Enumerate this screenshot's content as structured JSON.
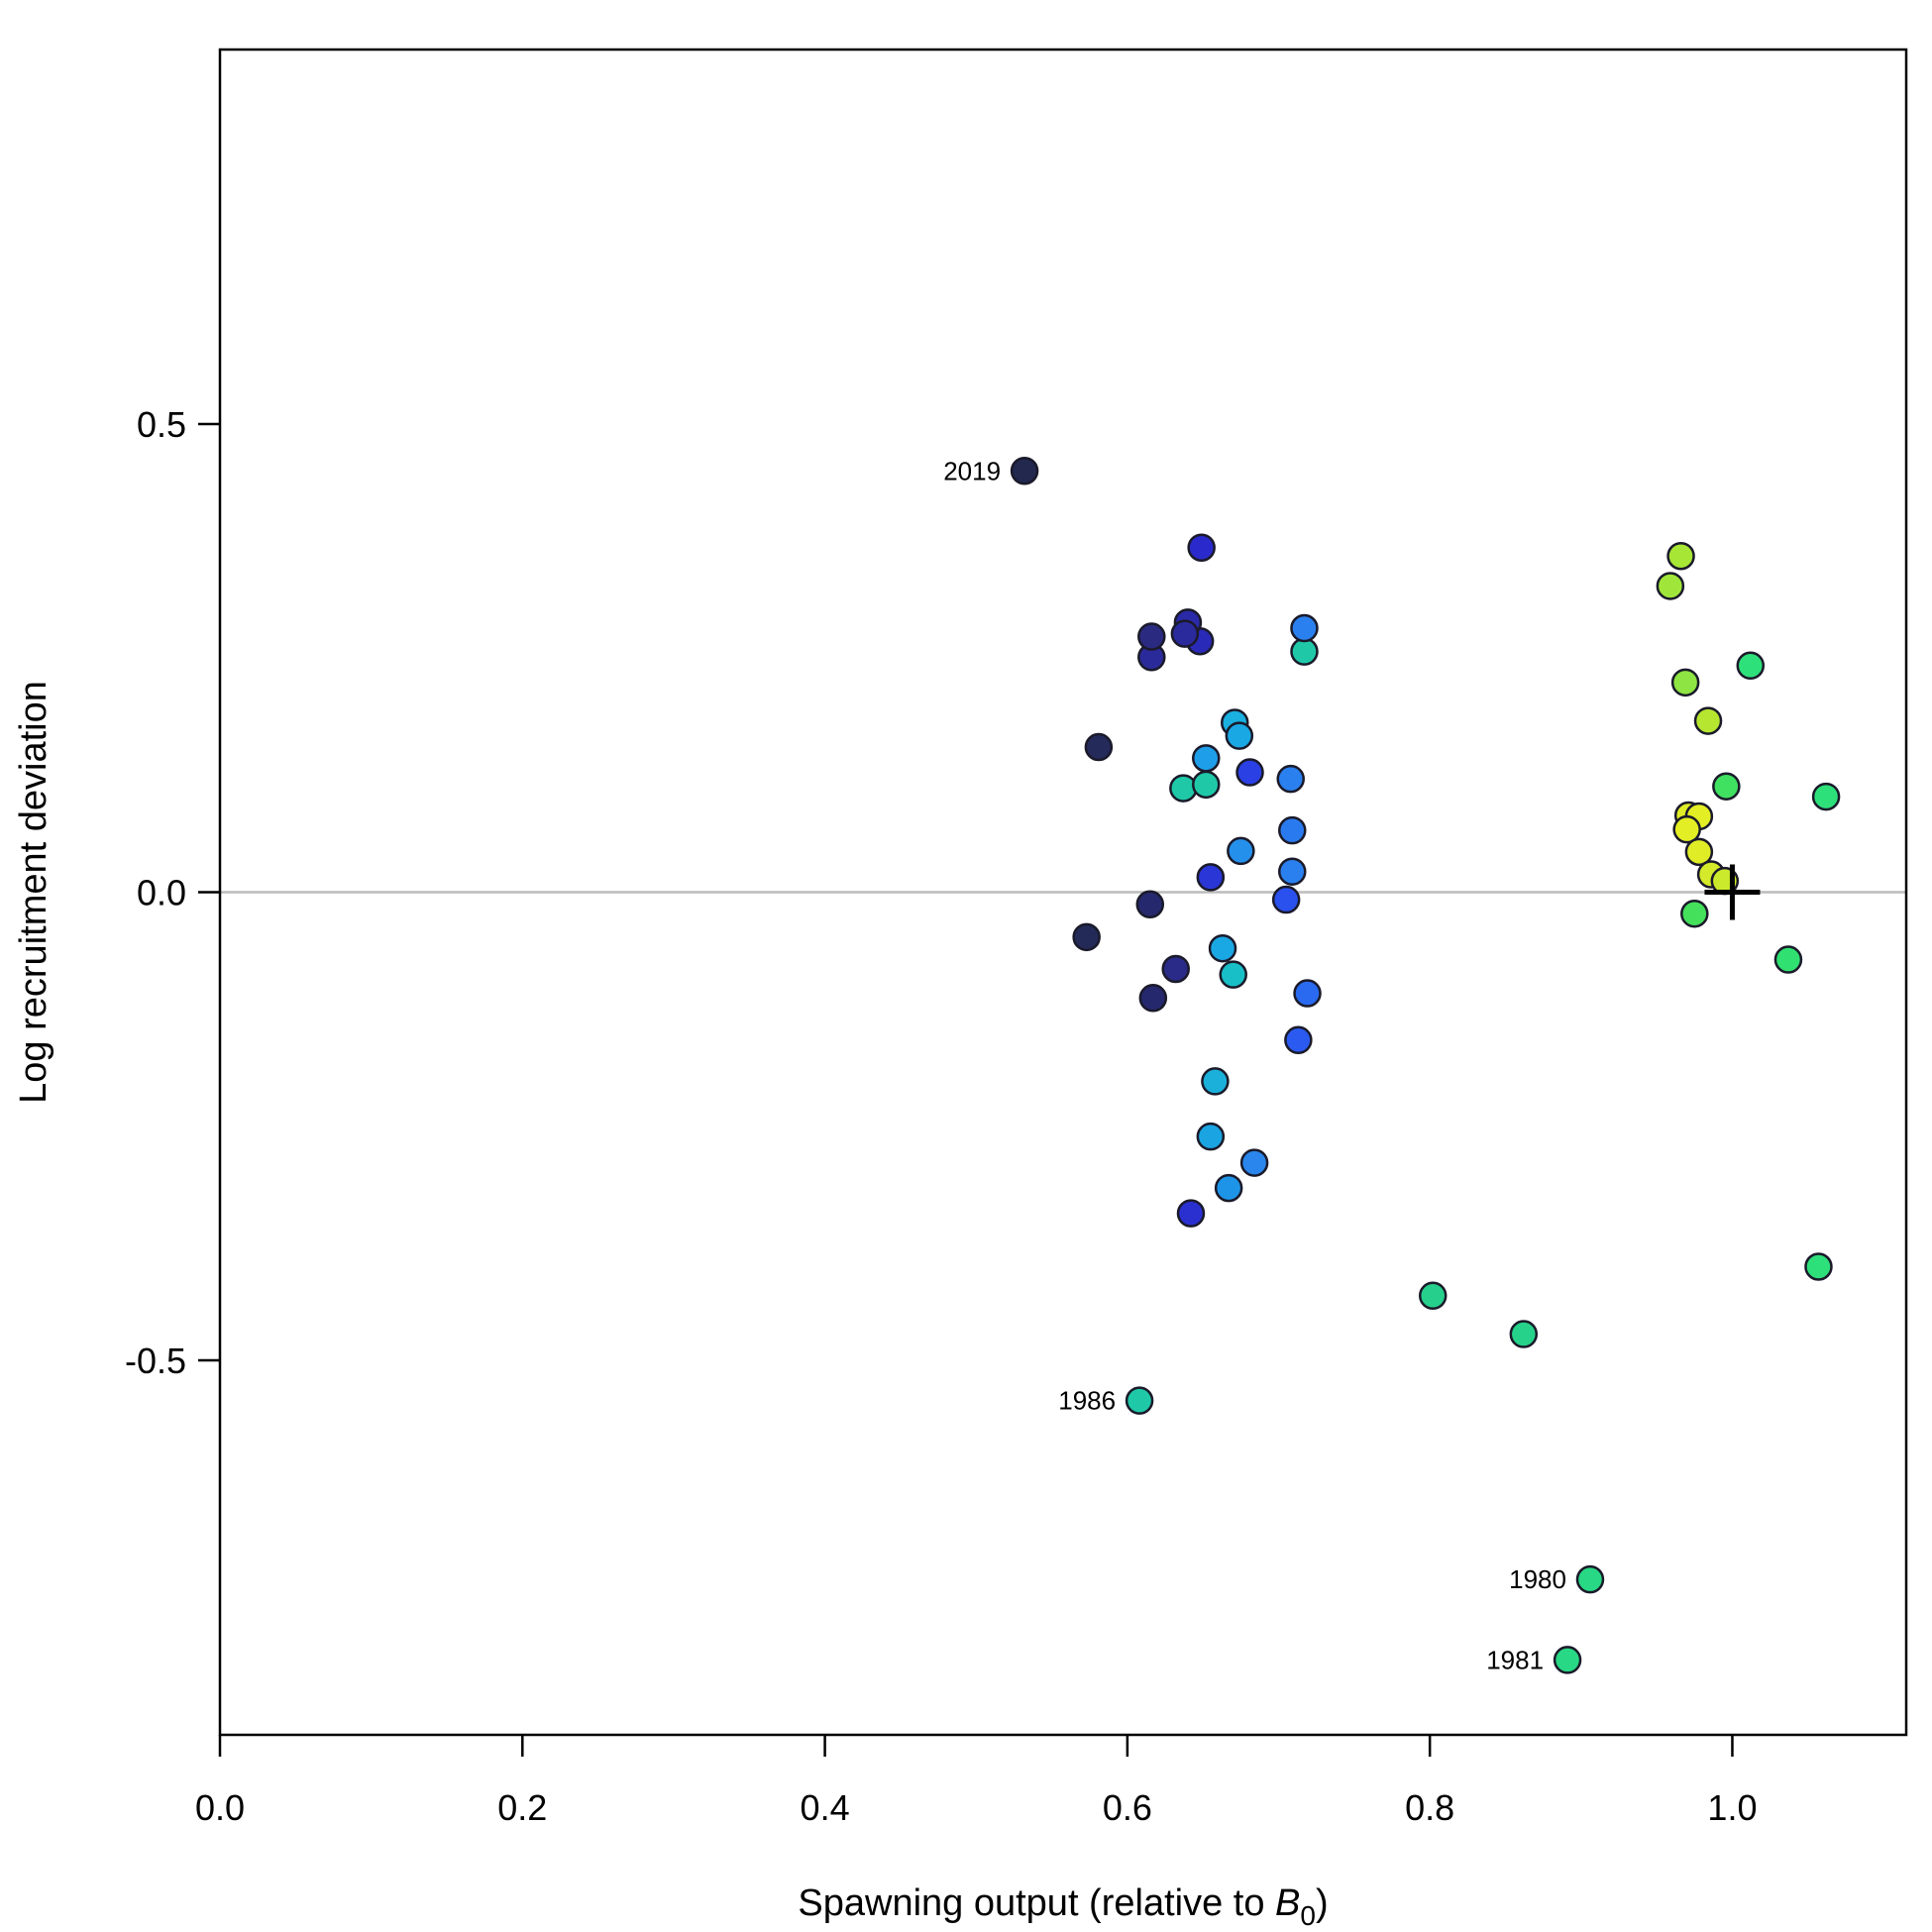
{
  "chart_data": {
    "type": "scatter",
    "title": "",
    "xlabel": {
      "main": "Spawning output (relative to ",
      "italic": "B",
      "sub": "0",
      "tail": ")"
    },
    "ylabel": "Log recruitment deviation",
    "xlim": [
      0.0,
      1.115
    ],
    "ylim": [
      -0.9,
      0.9
    ],
    "x_ticks": [
      {
        "value": 0.0,
        "label": "0.0"
      },
      {
        "value": 0.2,
        "label": "0.2"
      },
      {
        "value": 0.4,
        "label": "0.4"
      },
      {
        "value": 0.6,
        "label": "0.6"
      },
      {
        "value": 0.8,
        "label": "0.8"
      },
      {
        "value": 1.0,
        "label": "1.0"
      }
    ],
    "y_ticks": [
      {
        "value": 0.5,
        "label": "0.5"
      },
      {
        "value": 0.0,
        "label": "0.0"
      },
      {
        "value": -0.5,
        "label": "-0.5"
      }
    ],
    "reference_line_y": 0.0,
    "reference_line_color": "#bbbbbb",
    "marker": {
      "x": 1.0,
      "y": 0.0,
      "shape": "plus"
    },
    "grid": false,
    "points": [
      {
        "x": 1.062,
        "y": 0.102,
        "color": "#2ee07a"
      },
      {
        "x": 1.012,
        "y": 0.242,
        "color": "#2ee07a"
      },
      {
        "x": 0.996,
        "y": 0.113,
        "color": "#40e060"
      },
      {
        "x": 1.037,
        "y": -0.072,
        "color": "#30e070"
      },
      {
        "x": 1.057,
        "y": -0.4,
        "color": "#2ee07a"
      },
      {
        "x": 0.906,
        "y": -0.734,
        "color": "#28d884",
        "label": "1980"
      },
      {
        "x": 0.891,
        "y": -0.82,
        "color": "#28d884",
        "label": "1981"
      },
      {
        "x": 0.862,
        "y": -0.472,
        "color": "#26d28a"
      },
      {
        "x": 0.802,
        "y": -0.431,
        "color": "#26d08c"
      },
      {
        "x": 0.608,
        "y": -0.543,
        "color": "#1fc9a8",
        "label": "1986"
      },
      {
        "x": 0.717,
        "y": 0.257,
        "color": "#1fc9a8"
      },
      {
        "x": 0.637,
        "y": 0.111,
        "color": "#1fc9a8"
      },
      {
        "x": 0.652,
        "y": 0.115,
        "color": "#1fc9a8"
      },
      {
        "x": 0.67,
        "y": -0.088,
        "color": "#19bfc6"
      },
      {
        "x": 0.658,
        "y": -0.202,
        "color": "#1ab0da"
      },
      {
        "x": 0.655,
        "y": -0.261,
        "color": "#1aa4e2"
      },
      {
        "x": 0.667,
        "y": -0.316,
        "color": "#1e94e8"
      },
      {
        "x": 0.684,
        "y": -0.289,
        "color": "#2a86ec"
      },
      {
        "x": 0.663,
        "y": -0.06,
        "color": "#1aa8e4"
      },
      {
        "x": 0.671,
        "y": 0.181,
        "color": "#1ab0e0"
      },
      {
        "x": 0.674,
        "y": 0.167,
        "color": "#1aa8e4"
      },
      {
        "x": 0.652,
        "y": 0.143,
        "color": "#1e9ee8"
      },
      {
        "x": 0.675,
        "y": 0.044,
        "color": "#2590ec"
      },
      {
        "x": 0.709,
        "y": 0.066,
        "color": "#2a7aef"
      },
      {
        "x": 0.709,
        "y": 0.022,
        "color": "#2a80ee"
      },
      {
        "x": 0.708,
        "y": 0.121,
        "color": "#2a80ee"
      },
      {
        "x": 0.717,
        "y": 0.282,
        "color": "#2a80ee"
      },
      {
        "x": 0.719,
        "y": -0.108,
        "color": "#2a6af0"
      },
      {
        "x": 0.713,
        "y": -0.158,
        "color": "#2a5af0"
      },
      {
        "x": 0.705,
        "y": -0.008,
        "color": "#2a50ee"
      },
      {
        "x": 0.681,
        "y": 0.128,
        "color": "#2a40e4"
      },
      {
        "x": 0.655,
        "y": 0.016,
        "color": "#2a36d6"
      },
      {
        "x": 0.642,
        "y": -0.343,
        "color": "#2a30d0"
      },
      {
        "x": 0.649,
        "y": 0.368,
        "color": "#2a2acc"
      },
      {
        "x": 0.648,
        "y": 0.268,
        "color": "#2a2ab8"
      },
      {
        "x": 0.64,
        "y": 0.288,
        "color": "#2a2aa8"
      },
      {
        "x": 0.638,
        "y": 0.276,
        "color": "#2a2a9c"
      },
      {
        "x": 0.616,
        "y": 0.251,
        "color": "#2a2a9a"
      },
      {
        "x": 0.616,
        "y": 0.273,
        "color": "#2a2a80"
      },
      {
        "x": 0.615,
        "y": -0.013,
        "color": "#26286e"
      },
      {
        "x": 0.632,
        "y": -0.082,
        "color": "#2a2a88"
      },
      {
        "x": 0.617,
        "y": -0.113,
        "color": "#26286e"
      },
      {
        "x": 0.581,
        "y": 0.155,
        "color": "#242a5a"
      },
      {
        "x": 0.573,
        "y": -0.048,
        "color": "#242a58"
      },
      {
        "x": 0.532,
        "y": 0.45,
        "color": "#22284e",
        "label": "2019"
      },
      {
        "x": 0.966,
        "y": 0.359,
        "color": "#a8e636"
      },
      {
        "x": 0.959,
        "y": 0.327,
        "color": "#a0e63a"
      },
      {
        "x": 0.969,
        "y": 0.224,
        "color": "#8ee442"
      },
      {
        "x": 0.984,
        "y": 0.183,
        "color": "#b6e630"
      },
      {
        "x": 0.971,
        "y": 0.082,
        "color": "#e0ec26"
      },
      {
        "x": 0.978,
        "y": 0.081,
        "color": "#e4ee24"
      },
      {
        "x": 0.97,
        "y": 0.067,
        "color": "#e4ee24"
      },
      {
        "x": 0.978,
        "y": 0.043,
        "color": "#e0ec26"
      },
      {
        "x": 0.986,
        "y": 0.019,
        "color": "#d4ea2a"
      },
      {
        "x": 0.995,
        "y": 0.012,
        "color": "#ccea2c"
      },
      {
        "x": 0.975,
        "y": -0.023,
        "color": "#44e05c"
      }
    ]
  }
}
